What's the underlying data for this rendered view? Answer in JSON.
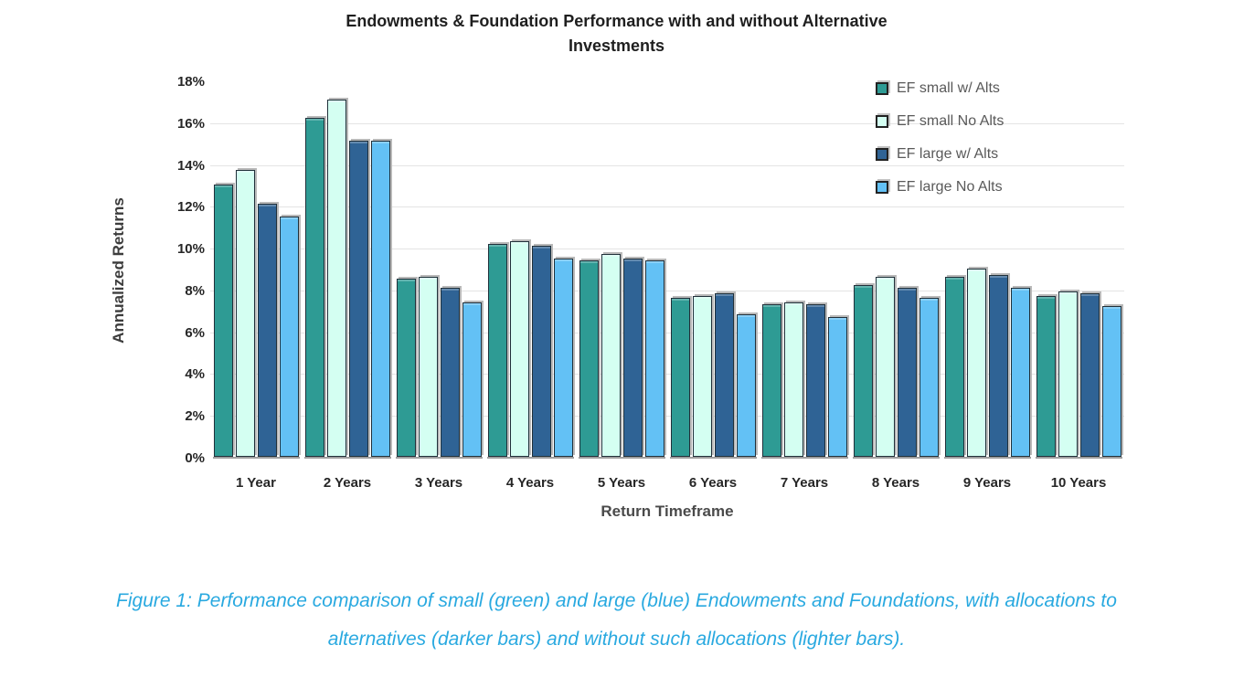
{
  "chart_data": {
    "type": "bar",
    "title": "Endowments & Foundation Performance with and without Alternative Investments",
    "title_lines": [
      "Endowments & Foundation Performance with and without Alternative",
      "Investments"
    ],
    "xlabel": "Return Timeframe",
    "ylabel": "Annualized Returns",
    "ylim": [
      0,
      18
    ],
    "ytick_step": 2,
    "ytick_labels": [
      "0%",
      "2%",
      "4%",
      "6%",
      "8%",
      "10%",
      "12%",
      "14%",
      "16%",
      "18%"
    ],
    "grid": true,
    "legend_position": "top-right",
    "categories": [
      "1 Year",
      "2 Years",
      "3 Years",
      "4 Years",
      "5 Years",
      "6 Years",
      "7 Years",
      "8 Years",
      "9 Years",
      "10 Years"
    ],
    "series": [
      {
        "name": "EF small w/ Alts",
        "color": "#2e9b94",
        "values": [
          13.0,
          16.2,
          8.5,
          10.2,
          9.4,
          7.6,
          7.3,
          8.2,
          8.6,
          7.7
        ]
      },
      {
        "name": "EF small No Alts",
        "color": "#d4fff2",
        "values": [
          13.7,
          17.1,
          8.6,
          10.3,
          9.7,
          7.7,
          7.4,
          8.6,
          9.0,
          7.9
        ]
      },
      {
        "name": "EF large w/ Alts",
        "color": "#2f6395",
        "values": [
          12.1,
          15.1,
          8.1,
          10.1,
          9.5,
          7.8,
          7.3,
          8.1,
          8.7,
          7.8
        ]
      },
      {
        "name": "EF large No Alts",
        "color": "#63c1f5",
        "values": [
          11.5,
          15.1,
          7.4,
          9.5,
          9.4,
          6.8,
          6.7,
          7.6,
          8.1,
          7.2
        ]
      }
    ]
  },
  "caption": {
    "color": "#29a9e0",
    "lines": [
      "Figure 1: Performance comparison of small (green) and large (blue) Endowments and Foundations, with allocations to",
      "alternatives (darker bars) and without such allocations (lighter bars)."
    ]
  }
}
